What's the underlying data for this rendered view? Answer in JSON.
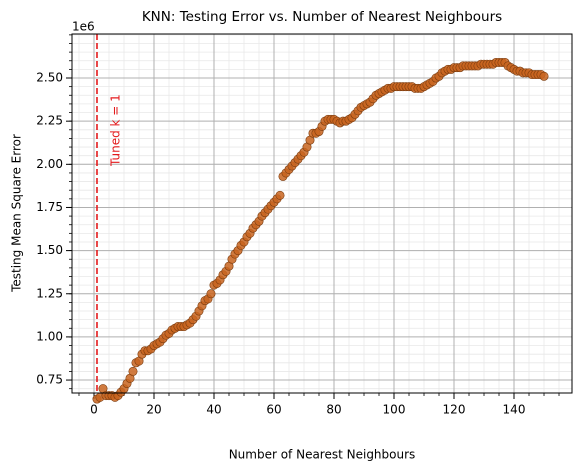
{
  "chart_data": {
    "type": "scatter",
    "title": "KNN: Testing Error vs. Number of Nearest Neighbours",
    "xlabel": "Number of Nearest Neighbours",
    "ylabel": "Testing Mean Square Error",
    "y_offset_label": "1e6",
    "color": "#c8641e",
    "edgecolor": "#7a3a0c",
    "xlim": [
      -7.33,
      159.33
    ],
    "ylim": [
      0.675,
      2.755
    ],
    "xticks": [
      0,
      20,
      40,
      60,
      80,
      100,
      120,
      140
    ],
    "yticks": [
      {
        "value": 0.75,
        "label": "0.75"
      },
      {
        "value": 1.0,
        "label": "1.00"
      },
      {
        "value": 1.25,
        "label": "1.25"
      },
      {
        "value": 1.5,
        "label": "1.50"
      },
      {
        "value": 1.75,
        "label": "1.75"
      },
      {
        "value": 2.0,
        "label": "2.00"
      },
      {
        "value": 2.25,
        "label": "2.25"
      },
      {
        "value": 2.5,
        "label": "2.50"
      }
    ],
    "xminor": [
      -5,
      0,
      5,
      10,
      15,
      20,
      25,
      30,
      35,
      40,
      45,
      50,
      55,
      60,
      65,
      70,
      75,
      80,
      85,
      90,
      95,
      100,
      105,
      110,
      115,
      120,
      125,
      130,
      135,
      140,
      145,
      150,
      155
    ],
    "yminor": [
      0.7,
      0.75,
      0.8,
      0.85,
      0.9,
      0.95,
      1.0,
      1.05,
      1.1,
      1.15,
      1.2,
      1.25,
      1.3,
      1.35,
      1.4,
      1.45,
      1.5,
      1.55,
      1.6,
      1.65,
      1.7,
      1.75,
      1.8,
      1.85,
      1.9,
      1.95,
      2.0,
      2.05,
      2.1,
      2.15,
      2.2,
      2.25,
      2.3,
      2.35,
      2.4,
      2.45,
      2.5,
      2.55,
      2.6,
      2.65,
      2.7,
      2.75
    ],
    "grid": true,
    "minor_grid": true,
    "vline": {
      "x": 1,
      "color": "#e41a1c",
      "label": "Tuned k = 1"
    },
    "x": [
      1,
      2,
      3,
      4,
      5,
      6,
      7,
      8,
      9,
      10,
      11,
      12,
      13,
      14,
      15,
      16,
      17,
      18,
      19,
      20,
      21,
      22,
      23,
      24,
      25,
      26,
      27,
      28,
      29,
      30,
      31,
      32,
      33,
      34,
      35,
      36,
      37,
      38,
      39,
      40,
      41,
      42,
      43,
      44,
      45,
      46,
      47,
      48,
      49,
      50,
      51,
      52,
      53,
      54,
      55,
      56,
      57,
      58,
      59,
      60,
      61,
      62,
      63,
      64,
      65,
      66,
      67,
      68,
      69,
      70,
      71,
      72,
      73,
      74,
      75,
      76,
      77,
      78,
      79,
      80,
      81,
      82,
      83,
      84,
      85,
      86,
      87,
      88,
      89,
      90,
      91,
      92,
      93,
      94,
      95,
      96,
      97,
      98,
      99,
      100,
      101,
      102,
      103,
      104,
      105,
      106,
      107,
      108,
      109,
      110,
      111,
      112,
      113,
      114,
      115,
      116,
      117,
      118,
      119,
      120,
      121,
      122,
      123,
      124,
      125,
      126,
      127,
      128,
      129,
      130,
      131,
      132,
      133,
      134,
      135,
      136,
      137,
      138,
      139,
      140,
      141,
      142,
      143,
      144,
      145,
      146,
      147,
      148,
      149,
      150
    ],
    "values": [
      0.64,
      0.65,
      0.7,
      0.66,
      0.66,
      0.66,
      0.65,
      0.66,
      0.68,
      0.7,
      0.73,
      0.76,
      0.8,
      0.85,
      0.86,
      0.9,
      0.92,
      0.92,
      0.93,
      0.95,
      0.96,
      0.97,
      0.99,
      1.01,
      1.02,
      1.04,
      1.05,
      1.06,
      1.06,
      1.06,
      1.07,
      1.08,
      1.1,
      1.12,
      1.15,
      1.18,
      1.21,
      1.22,
      1.25,
      1.3,
      1.31,
      1.33,
      1.36,
      1.38,
      1.41,
      1.45,
      1.48,
      1.5,
      1.53,
      1.55,
      1.58,
      1.6,
      1.63,
      1.65,
      1.67,
      1.7,
      1.72,
      1.74,
      1.76,
      1.78,
      1.8,
      1.82,
      1.93,
      1.95,
      1.97,
      1.99,
      2.01,
      2.03,
      2.05,
      2.07,
      2.1,
      2.14,
      2.18,
      2.18,
      2.19,
      2.22,
      2.25,
      2.26,
      2.26,
      2.26,
      2.25,
      2.24,
      2.25,
      2.25,
      2.26,
      2.27,
      2.29,
      2.31,
      2.33,
      2.34,
      2.35,
      2.36,
      2.38,
      2.4,
      2.41,
      2.42,
      2.43,
      2.44,
      2.44,
      2.45,
      2.45,
      2.45,
      2.45,
      2.45,
      2.45,
      2.45,
      2.44,
      2.44,
      2.44,
      2.45,
      2.46,
      2.47,
      2.48,
      2.5,
      2.51,
      2.53,
      2.54,
      2.55,
      2.55,
      2.56,
      2.56,
      2.56,
      2.57,
      2.57,
      2.57,
      2.57,
      2.57,
      2.57,
      2.58,
      2.58,
      2.58,
      2.58,
      2.58,
      2.59,
      2.59,
      2.59,
      2.59,
      2.57,
      2.56,
      2.55,
      2.54,
      2.54,
      2.53,
      2.53,
      2.53,
      2.52,
      2.52,
      2.52,
      2.52,
      2.51
    ]
  }
}
